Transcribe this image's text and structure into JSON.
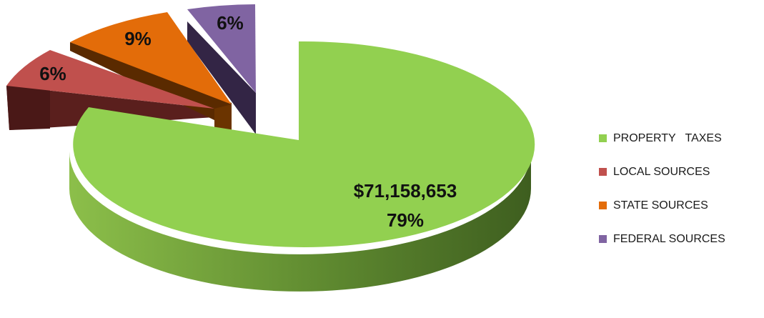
{
  "chart_data": {
    "type": "pie",
    "style": "3d-exploded",
    "legend_position": "right",
    "slices": [
      {
        "label": "PROPERTY   TAXES",
        "percent": 79,
        "value_label": "$71,158,653",
        "percent_label": "79%",
        "color": "#92d050"
      },
      {
        "label": "LOCAL SOURCES",
        "percent": 6,
        "percent_label": "6%",
        "color": "#c0504d"
      },
      {
        "label": "STATE SOURCES",
        "percent": 9,
        "percent_label": "9%",
        "color": "#e36c09"
      },
      {
        "label": "FEDERAL SOURCES",
        "percent": 6,
        "percent_label": "6%",
        "color": "#8064a2"
      }
    ]
  }
}
